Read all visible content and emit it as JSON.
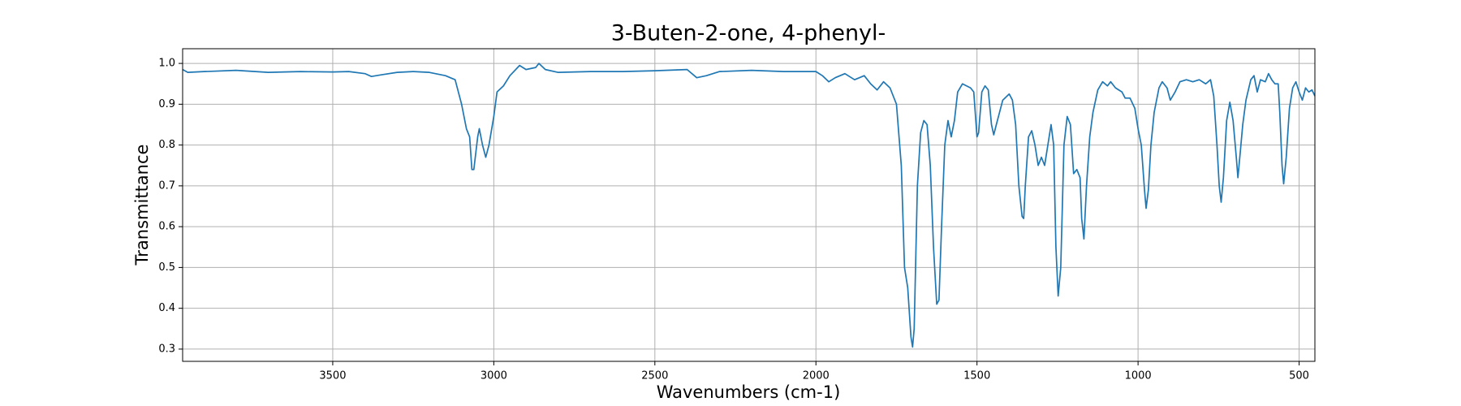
{
  "chart_data": {
    "type": "line",
    "title": "3-Buten-2-one, 4-phenyl-",
    "xlabel": "Wavenumbers (cm-1)",
    "ylabel": "Transmittance",
    "color": "#1f77b4",
    "grid": true,
    "xlim": [
      3966,
      451
    ],
    "ylim": [
      0.27,
      1.036
    ],
    "xticks": [
      3500,
      3000,
      2500,
      2000,
      1500,
      1000,
      500
    ],
    "yticks": [
      0.3,
      0.4,
      0.5,
      0.6,
      0.7,
      0.8,
      0.9,
      {
        "value": 1,
        "label": "1.0"
      }
    ],
    "x": [
      3966,
      3950,
      3900,
      3800,
      3700,
      3600,
      3500,
      3450,
      3400,
      3380,
      3350,
      3300,
      3250,
      3200,
      3150,
      3120,
      3100,
      3085,
      3075,
      3068,
      3062,
      3050,
      3045,
      3035,
      3025,
      3015,
      3000,
      2990,
      2970,
      2950,
      2920,
      2900,
      2870,
      2860,
      2840,
      2800,
      2700,
      2600,
      2500,
      2400,
      2370,
      2340,
      2300,
      2200,
      2100,
      2000,
      1980,
      1960,
      1940,
      1910,
      1880,
      1850,
      1830,
      1810,
      1790,
      1770,
      1750,
      1735,
      1725,
      1715,
      1705,
      1700,
      1695,
      1685,
      1675,
      1665,
      1655,
      1645,
      1635,
      1625,
      1618,
      1610,
      1600,
      1590,
      1580,
      1570,
      1560,
      1545,
      1520,
      1510,
      1500,
      1495,
      1485,
      1475,
      1465,
      1455,
      1448,
      1440,
      1430,
      1420,
      1400,
      1390,
      1380,
      1370,
      1360,
      1355,
      1350,
      1340,
      1330,
      1320,
      1310,
      1300,
      1290,
      1280,
      1270,
      1262,
      1255,
      1248,
      1240,
      1230,
      1220,
      1210,
      1200,
      1190,
      1180,
      1175,
      1168,
      1160,
      1150,
      1140,
      1125,
      1110,
      1095,
      1085,
      1070,
      1050,
      1040,
      1025,
      1010,
      1000,
      990,
      980,
      975,
      968,
      960,
      950,
      935,
      925,
      910,
      900,
      885,
      870,
      850,
      830,
      810,
      790,
      775,
      765,
      755,
      748,
      742,
      735,
      725,
      715,
      705,
      695,
      690,
      683,
      675,
      665,
      650,
      640,
      630,
      620,
      605,
      595,
      585,
      575,
      565,
      560,
      553,
      548,
      540,
      530,
      520,
      510,
      500,
      490,
      480,
      470,
      460,
      451
    ],
    "values": [
      0.985,
      0.978,
      0.98,
      0.983,
      0.978,
      0.98,
      0.979,
      0.98,
      0.975,
      0.968,
      0.972,
      0.978,
      0.98,
      0.978,
      0.97,
      0.96,
      0.9,
      0.84,
      0.82,
      0.74,
      0.74,
      0.82,
      0.84,
      0.8,
      0.77,
      0.8,
      0.87,
      0.93,
      0.945,
      0.97,
      0.995,
      0.985,
      0.99,
      1.0,
      0.985,
      0.978,
      0.98,
      0.98,
      0.982,
      0.985,
      0.965,
      0.97,
      0.98,
      0.983,
      0.98,
      0.98,
      0.97,
      0.955,
      0.965,
      0.975,
      0.96,
      0.97,
      0.95,
      0.935,
      0.955,
      0.94,
      0.9,
      0.75,
      0.5,
      0.45,
      0.33,
      0.305,
      0.35,
      0.7,
      0.83,
      0.86,
      0.85,
      0.75,
      0.55,
      0.41,
      0.42,
      0.6,
      0.8,
      0.86,
      0.82,
      0.86,
      0.93,
      0.95,
      0.94,
      0.93,
      0.82,
      0.83,
      0.93,
      0.945,
      0.935,
      0.85,
      0.825,
      0.85,
      0.88,
      0.91,
      0.925,
      0.91,
      0.85,
      0.7,
      0.625,
      0.62,
      0.7,
      0.82,
      0.835,
      0.8,
      0.75,
      0.77,
      0.75,
      0.8,
      0.85,
      0.8,
      0.55,
      0.43,
      0.5,
      0.8,
      0.87,
      0.85,
      0.73,
      0.74,
      0.72,
      0.62,
      0.57,
      0.7,
      0.82,
      0.88,
      0.935,
      0.955,
      0.945,
      0.955,
      0.94,
      0.93,
      0.915,
      0.915,
      0.89,
      0.84,
      0.8,
      0.69,
      0.645,
      0.69,
      0.8,
      0.88,
      0.94,
      0.955,
      0.94,
      0.91,
      0.93,
      0.955,
      0.96,
      0.955,
      0.96,
      0.95,
      0.96,
      0.92,
      0.8,
      0.7,
      0.66,
      0.72,
      0.86,
      0.905,
      0.86,
      0.77,
      0.72,
      0.78,
      0.85,
      0.91,
      0.96,
      0.97,
      0.93,
      0.96,
      0.955,
      0.975,
      0.96,
      0.95,
      0.95,
      0.88,
      0.75,
      0.705,
      0.77,
      0.89,
      0.94,
      0.955,
      0.93,
      0.91,
      0.94,
      0.93,
      0.935,
      0.92
    ]
  }
}
